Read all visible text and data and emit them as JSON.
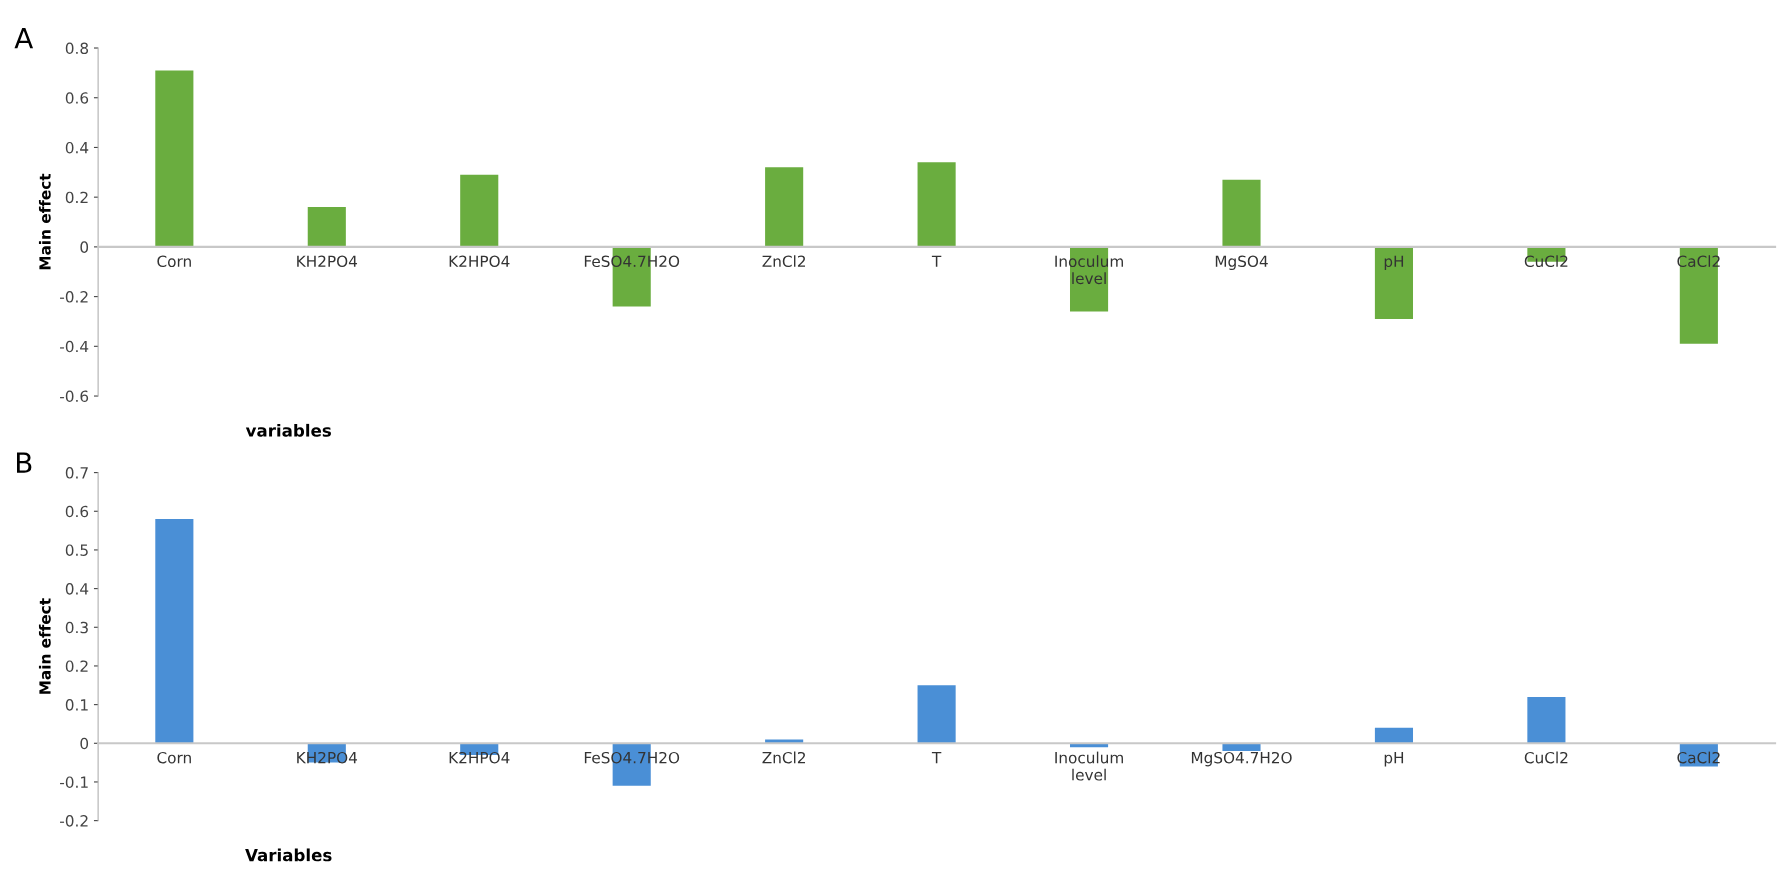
{
  "chart_data": [
    {
      "type": "bar",
      "title": "A",
      "xlabel": "variables",
      "ylabel": "Main effect",
      "categories": [
        "Corn",
        "KH2PO4",
        "K2HPO4",
        "FeSO4.7H2O",
        "ZnCl2",
        "T",
        "Inoculum\nlevel",
        "MgSO4",
        "pH",
        "CuCl2",
        "CaCl2"
      ],
      "values": [
        0.71,
        0.16,
        0.29,
        -0.24,
        0.32,
        0.34,
        -0.26,
        0.27,
        -0.29,
        -0.06,
        -0.39
      ],
      "color": "#6aad3f",
      "ylim": [
        -0.6,
        0.8
      ],
      "yticks": [
        -0.6,
        -0.4,
        -0.2,
        0,
        0.2,
        0.4,
        0.6,
        0.8
      ],
      "grid": false
    },
    {
      "type": "bar",
      "title": "B",
      "xlabel": "Variables",
      "ylabel": "Main effect",
      "categories": [
        "Corn",
        "KH2PO4",
        "K2HPO4",
        "FeSO4.7H2O",
        "ZnCl2",
        "T",
        "Inoculum\nlevel",
        "MgSO4.7H2O",
        "pH",
        "CuCl2",
        "CaCl2"
      ],
      "values": [
        0.58,
        -0.05,
        -0.03,
        -0.11,
        0.01,
        0.15,
        -0.01,
        -0.02,
        0.04,
        0.12,
        -0.06
      ],
      "color": "#4a8fd6",
      "ylim": [
        -0.2,
        0.7
      ],
      "yticks": [
        -0.2,
        -0.1,
        0,
        0.1,
        0.2,
        0.3,
        0.4,
        0.5,
        0.6,
        0.7
      ],
      "grid": false
    }
  ]
}
